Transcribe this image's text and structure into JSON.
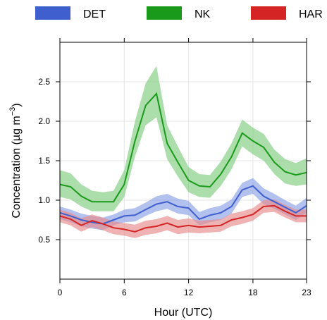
{
  "chart_data": {
    "type": "line",
    "xlabel": "Hour (UTC)",
    "ylabel_main": "Concentration (µg m",
    "ylabel_sup": "−3",
    "ylabel_close": ")",
    "xlim": [
      0,
      23
    ],
    "ylim": [
      0,
      3.0
    ],
    "x_ticks": [
      0,
      6,
      12,
      18,
      23
    ],
    "y_ticks": [
      0.5,
      1.0,
      1.5,
      2.0,
      2.5
    ],
    "grid": true,
    "legend_position": "top",
    "x": [
      0,
      1,
      2,
      3,
      4,
      5,
      6,
      7,
      8,
      9,
      10,
      11,
      12,
      13,
      14,
      15,
      16,
      17,
      18,
      19,
      20,
      21,
      22,
      23
    ],
    "series": [
      {
        "name": "DET",
        "color": "#3f5fcf",
        "band_color": "#8a9fe6",
        "values": [
          0.84,
          0.8,
          0.75,
          0.72,
          0.7,
          0.75,
          0.8,
          0.81,
          0.88,
          0.95,
          0.98,
          0.92,
          0.9,
          0.76,
          0.81,
          0.84,
          0.92,
          1.13,
          1.18,
          1.05,
          0.98,
          0.91,
          0.84,
          0.93
        ],
        "upper": [
          0.92,
          0.88,
          0.83,
          0.8,
          0.78,
          0.82,
          0.88,
          0.9,
          0.97,
          1.05,
          1.08,
          1.02,
          0.99,
          0.85,
          0.9,
          0.93,
          1.01,
          1.22,
          1.28,
          1.15,
          1.08,
          1.0,
          0.93,
          1.03
        ],
        "lower": [
          0.76,
          0.72,
          0.67,
          0.64,
          0.62,
          0.68,
          0.72,
          0.73,
          0.8,
          0.86,
          0.89,
          0.83,
          0.81,
          0.68,
          0.72,
          0.75,
          0.83,
          1.04,
          1.08,
          0.95,
          0.89,
          0.82,
          0.75,
          0.84
        ]
      },
      {
        "name": "NK",
        "color": "#1a9a1a",
        "band_color": "#7fcc7f",
        "values": [
          1.2,
          1.17,
          1.05,
          0.98,
          0.98,
          0.98,
          1.2,
          1.75,
          2.2,
          2.35,
          1.72,
          1.48,
          1.25,
          1.18,
          1.17,
          1.33,
          1.55,
          1.85,
          1.75,
          1.67,
          1.48,
          1.36,
          1.32,
          1.35
        ],
        "upper": [
          1.38,
          1.34,
          1.2,
          1.12,
          1.1,
          1.12,
          1.38,
          2.0,
          2.48,
          2.7,
          1.95,
          1.68,
          1.42,
          1.33,
          1.32,
          1.49,
          1.72,
          2.02,
          1.92,
          1.84,
          1.64,
          1.52,
          1.47,
          1.53
        ],
        "lower": [
          1.04,
          1.01,
          0.92,
          0.86,
          0.86,
          0.86,
          1.04,
          1.55,
          1.95,
          2.05,
          1.52,
          1.3,
          1.1,
          1.04,
          1.03,
          1.18,
          1.39,
          1.68,
          1.58,
          1.5,
          1.33,
          1.21,
          1.18,
          1.2
        ]
      },
      {
        "name": "HAR",
        "color": "#d42424",
        "band_color": "#e88a8a",
        "values": [
          0.8,
          0.76,
          0.68,
          0.74,
          0.7,
          0.65,
          0.63,
          0.6,
          0.65,
          0.67,
          0.71,
          0.66,
          0.68,
          0.66,
          0.67,
          0.68,
          0.75,
          0.78,
          0.82,
          0.92,
          0.93,
          0.86,
          0.8,
          0.8
        ],
        "upper": [
          0.88,
          0.84,
          0.77,
          0.82,
          0.78,
          0.73,
          0.71,
          0.69,
          0.74,
          0.76,
          0.8,
          0.75,
          0.77,
          0.74,
          0.75,
          0.76,
          0.83,
          0.86,
          0.9,
          1.0,
          1.01,
          0.94,
          0.88,
          0.88
        ],
        "lower": [
          0.72,
          0.68,
          0.6,
          0.66,
          0.62,
          0.57,
          0.55,
          0.52,
          0.56,
          0.58,
          0.62,
          0.57,
          0.59,
          0.58,
          0.59,
          0.6,
          0.67,
          0.7,
          0.74,
          0.84,
          0.85,
          0.78,
          0.72,
          0.72
        ]
      }
    ]
  }
}
